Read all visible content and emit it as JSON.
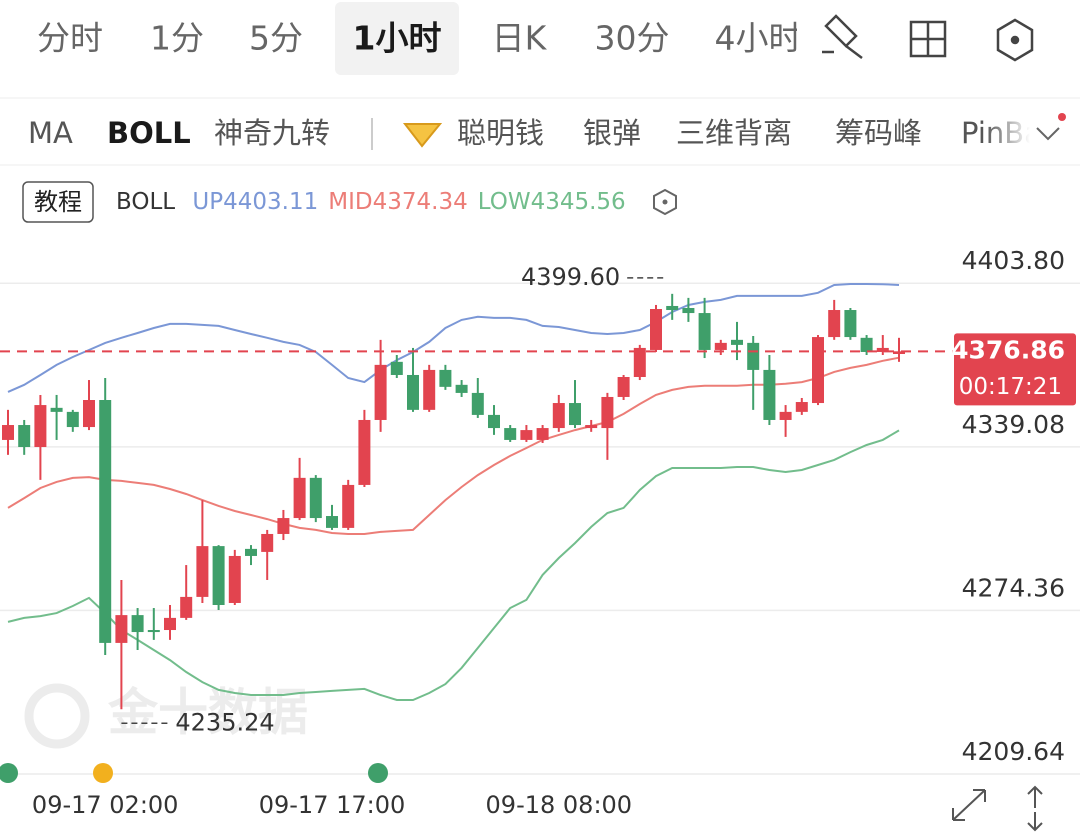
{
  "tabs": [
    {
      "label": "分时"
    },
    {
      "label": "1分"
    },
    {
      "label": "5分"
    },
    {
      "label": "1小时",
      "active": true
    },
    {
      "label": "日K"
    },
    {
      "label": "30分"
    },
    {
      "label": "4小时"
    }
  ],
  "indicators": [
    {
      "label": "MA"
    },
    {
      "label": "BOLL",
      "active": true
    },
    {
      "label": "神奇九转"
    },
    {
      "label": "聪明钱"
    },
    {
      "label": "银弹"
    },
    {
      "label": "三维背离"
    },
    {
      "label": "筹码峰"
    },
    {
      "label": "PinBar"
    }
  ],
  "tutorial_button": "教程",
  "chart_data": {
    "type": "candlestick",
    "indicator": "BOLL",
    "watermark": "金十数据",
    "countdown": "00:17:21",
    "high_label": "4399.60",
    "low_label": "4235.24",
    "up_color": "#e2444f",
    "down_color": "#3f9f6a",
    "grid": true,
    "categories": [
      null,
      null,
      null,
      null,
      null,
      null,
      "09-17 02:00",
      null,
      null,
      null,
      null,
      null,
      null,
      null,
      null,
      null,
      null,
      null,
      null,
      null,
      "09-17 17:00",
      null,
      null,
      null,
      null,
      null,
      null,
      null,
      null,
      null,
      null,
      null,
      null,
      null,
      "09-18 08:00",
      null,
      null,
      null,
      null,
      null,
      null,
      null,
      null,
      null,
      null,
      null,
      null,
      null,
      null,
      null,
      null,
      null,
      null,
      null,
      null,
      null
    ],
    "candles": {
      "open": [
        4341.8,
        4347.7,
        4339.0,
        4354.5,
        4352.9,
        4346.9,
        4357.6,
        4261.5,
        4272.5,
        4266.6,
        4266.6,
        4271.4,
        4279.7,
        4299.8,
        4277.3,
        4298.7,
        4297.5,
        4304.6,
        4310.9,
        4326.8,
        4311.7,
        4307.0,
        4324.0,
        4349.7,
        4372.7,
        4367.5,
        4353.7,
        4369.5,
        4363.6,
        4360.4,
        4351.7,
        4346.5,
        4341.8,
        4341.8,
        4346.5,
        4356.4,
        4346.5,
        4346.5,
        4358.8,
        4366.7,
        4377.4,
        4394.8,
        4394.0,
        4392.0,
        4377.4,
        4381.4,
        4380.2,
        4369.5,
        4349.7,
        4352.9,
        4356.4,
        4382.5,
        4393.2,
        4382.2,
        4376.6,
        4375.8
      ],
      "high": [
        4353.7,
        4349.7,
        4359.6,
        4359.6,
        4353.7,
        4365.5,
        4366.3,
        4286.4,
        4275.3,
        4275.3,
        4276.5,
        4292.3,
        4318.0,
        4300.2,
        4298.3,
        4300.2,
        4306.2,
        4314.1,
        4334.7,
        4327.9,
        4316.1,
        4326.0,
        4353.7,
        4381.4,
        4375.4,
        4378.2,
        4371.5,
        4371.5,
        4365.5,
        4366.3,
        4355.6,
        4347.7,
        4347.7,
        4347.7,
        4359.6,
        4365.5,
        4349.7,
        4360.4,
        4367.5,
        4379.4,
        4395.2,
        4399.6,
        4398.0,
        4398.0,
        4381.4,
        4388.5,
        4382.9,
        4375.4,
        4355.6,
        4358.4,
        4383.3,
        4397.2,
        4394.0,
        4383.3,
        4383.3,
        4382.2
      ],
      "low": [
        4335.9,
        4335.9,
        4326.0,
        4341.8,
        4345.0,
        4345.7,
        4256.7,
        4235.24,
        4258.7,
        4262.7,
        4262.7,
        4270.6,
        4277.3,
        4274.5,
        4276.5,
        4292.3,
        4286.4,
        4302.2,
        4310.1,
        4309.3,
        4306.2,
        4306.2,
        4323.2,
        4345.0,
        4366.3,
        4352.9,
        4352.9,
        4361.6,
        4358.8,
        4350.5,
        4343.8,
        4341.0,
        4341.0,
        4340.6,
        4345.0,
        4346.5,
        4345.0,
        4333.9,
        4357.6,
        4365.5,
        4376.6,
        4389.3,
        4388.5,
        4374.2,
        4375.4,
        4373.4,
        4353.7,
        4347.7,
        4343.0,
        4351.7,
        4355.6,
        4381.4,
        4381.4,
        4375.4,
        4375.4,
        4372.7
      ],
      "close": [
        4347.7,
        4339.0,
        4355.6,
        4352.9,
        4346.9,
        4357.6,
        4261.5,
        4272.5,
        4265.8,
        4265.8,
        4271.4,
        4279.7,
        4299.8,
        4276.5,
        4295.9,
        4295.9,
        4304.6,
        4310.9,
        4326.8,
        4310.9,
        4307.0,
        4324.0,
        4349.7,
        4371.5,
        4367.5,
        4353.7,
        4369.5,
        4362.8,
        4360.4,
        4351.7,
        4346.5,
        4341.8,
        4345.7,
        4346.5,
        4356.4,
        4347.7,
        4347.7,
        4358.8,
        4366.7,
        4378.2,
        4393.6,
        4393.2,
        4392.0,
        4377.4,
        4380.2,
        4379.4,
        4369.5,
        4349.7,
        4352.9,
        4356.8,
        4382.5,
        4393.2,
        4382.5,
        4376.6,
        4378.2,
        4376.86
      ]
    },
    "series": [
      {
        "name": "UP",
        "color": "#7b97d6",
        "values": [
          4360.8,
          4363.6,
          4367.5,
          4371.5,
          4374.6,
          4377.4,
          4380.2,
          4382.2,
          4384.1,
          4386.1,
          4387.7,
          4387.7,
          4387.3,
          4386.9,
          4385.3,
          4383.7,
          4382.2,
          4380.6,
          4379.4,
          4376.6,
          4371.5,
          4366.3,
          4364.7,
          4369.5,
          4373.4,
          4376.6,
          4380.6,
          4386.1,
          4389.3,
          4390.5,
          4390.1,
          4390.1,
          4389.3,
          4386.9,
          4386.5,
          4385.3,
          4384.1,
          4383.7,
          4384.1,
          4385.3,
          4388.5,
          4392.4,
          4395.2,
          4396.4,
          4397.2,
          4398.8,
          4398.8,
          4398.8,
          4398.8,
          4398.8,
          4400.0,
          4403.1,
          4403.5,
          4403.5,
          4403.4,
          4403.11
        ]
      },
      {
        "name": "MID",
        "color": "#ec7d77",
        "values": [
          4314.9,
          4318.8,
          4322.8,
          4325.2,
          4326.8,
          4327.1,
          4326.0,
          4325.6,
          4324.8,
          4324.0,
          4322.4,
          4320.4,
          4318.0,
          4315.7,
          4313.7,
          4312.1,
          4310.5,
          4308.6,
          4307.0,
          4306.2,
          4305.0,
          4304.6,
          4304.6,
          4305.4,
          4305.8,
          4306.2,
          4312.1,
          4318.0,
          4323.2,
          4327.9,
          4331.9,
          4335.5,
          4338.6,
          4341.8,
          4343.8,
          4345.7,
          4347.3,
          4348.9,
          4352.1,
          4356.0,
          4359.6,
          4361.6,
          4362.8,
          4363.2,
          4363.2,
          4363.2,
          4363.6,
          4363.6,
          4364.0,
          4364.7,
          4366.3,
          4368.7,
          4370.3,
          4371.5,
          4373.1,
          4374.34
        ]
      },
      {
        "name": "LOW",
        "color": "#72bd8c",
        "values": [
          4269.8,
          4271.4,
          4272.1,
          4273.3,
          4276.1,
          4279.3,
          4273.3,
          4266.6,
          4262.7,
          4258.7,
          4254.7,
          4250.0,
          4246.0,
          4242.9,
          4241.7,
          4240.9,
          4240.9,
          4240.9,
          4241.7,
          4242.1,
          4242.5,
          4242.9,
          4243.3,
          4240.9,
          4238.9,
          4238.9,
          4241.7,
          4245.2,
          4251.6,
          4259.5,
          4267.4,
          4275.3,
          4278.5,
          4288.4,
          4295.1,
          4301.0,
          4307.4,
          4312.9,
          4314.9,
          4322.0,
          4327.5,
          4330.7,
          4330.7,
          4330.7,
          4330.7,
          4331.1,
          4331.1,
          4329.9,
          4329.1,
          4329.9,
          4331.9,
          4333.9,
          4337.0,
          4339.8,
          4341.8,
          4345.56
        ]
      }
    ],
    "ylim": [
      4209.64,
      4420.9
    ],
    "yticks": [
      4209.64,
      4274.36,
      4339.08,
      {
        "value": 4403.8,
        "label": "4403.80"
      }
    ]
  }
}
